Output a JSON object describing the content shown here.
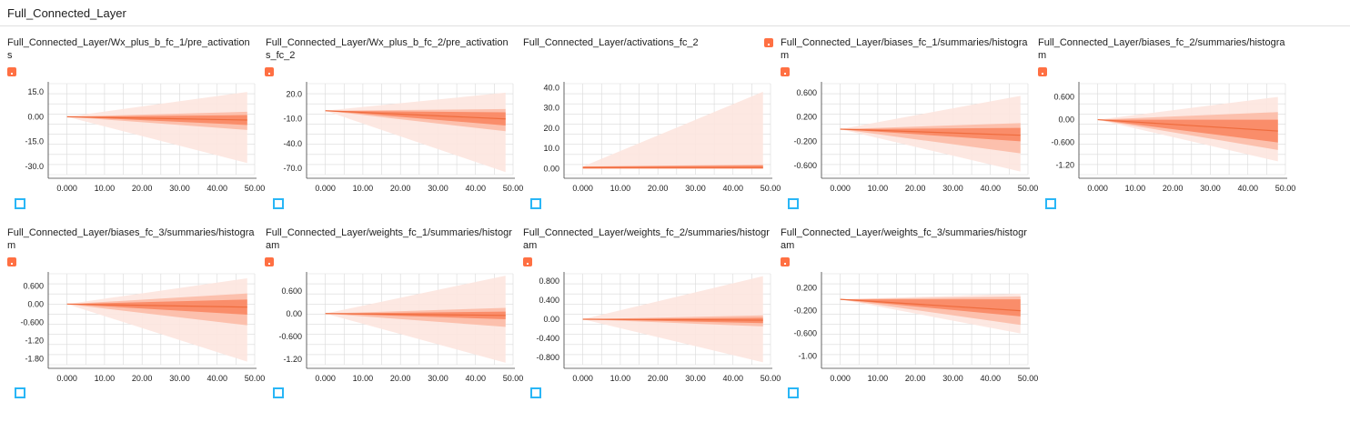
{
  "page": {
    "title": "Full_Connected_Layer"
  },
  "colors": {
    "band_outer": "#fde6df",
    "band_mid": "#fbb9a3",
    "band_inner": "#f9845e",
    "line": "#ef6c3e",
    "tag": "#ff7043",
    "expand": "#29b6f6",
    "grid": "#d9d9d9"
  },
  "icons": {
    "tag": "tag-marker-icon",
    "expand": "expand-icon"
  },
  "charts": [
    {
      "title": "Full_Connected_Layer/Wx_plus_b_fc_1/pre_activations",
      "chart_data": {
        "type": "area",
        "x": [
          0,
          48
        ],
        "xlim": [
          -5,
          50
        ],
        "ylim": [
          -35,
          20
        ],
        "xticks": [
          "0.000",
          "10.00",
          "20.00",
          "30.00",
          "40.00",
          "50.00"
        ],
        "xtick_values": [
          0,
          10,
          20,
          30,
          40,
          50
        ],
        "yticks": [
          "15.0",
          "0.00",
          "-15.0",
          "-30.0"
        ],
        "ytick_values": [
          15,
          0,
          -15,
          -30
        ],
        "bands": [
          {
            "start": [
              0,
              0
            ],
            "end": [
              15,
              -28
            ]
          },
          {
            "start": [
              0,
              0
            ],
            "end": [
              3,
              -8
            ]
          },
          {
            "start": [
              0,
              0
            ],
            "end": [
              1,
              -5
            ]
          }
        ],
        "center": [
          0,
          -2
        ]
      }
    },
    {
      "title": "Full_Connected_Layer/Wx_plus_b_fc_2/pre_activations_fc_2",
      "chart_data": {
        "type": "area",
        "x": [
          0,
          48
        ],
        "xlim": [
          -5,
          50
        ],
        "ylim": [
          -78,
          33
        ],
        "xticks": [
          "0.000",
          "10.00",
          "20.00",
          "30.00",
          "40.00",
          "50.00"
        ],
        "xtick_values": [
          0,
          10,
          20,
          30,
          40,
          50
        ],
        "yticks": [
          "20.0",
          "-10.0",
          "-40.0",
          "-70.0"
        ],
        "ytick_values": [
          20,
          -10,
          -40,
          -70
        ],
        "bands": [
          {
            "start": [
              0,
              0
            ],
            "end": [
              22,
              -75
            ]
          },
          {
            "start": [
              0,
              0
            ],
            "end": [
              2,
              -25
            ]
          },
          {
            "start": [
              0,
              0
            ],
            "end": [
              -2,
              -18
            ]
          }
        ],
        "center": [
          0,
          -10
        ]
      }
    },
    {
      "title": "Full_Connected_Layer/activations_fc_2",
      "chart_data": {
        "type": "area",
        "x": [
          0,
          48
        ],
        "xlim": [
          -5,
          50
        ],
        "ylim": [
          -3,
          42
        ],
        "xticks": [
          "0.000",
          "10.00",
          "20.00",
          "30.00",
          "40.00",
          "50.00"
        ],
        "xtick_values": [
          0,
          10,
          20,
          30,
          40,
          50
        ],
        "yticks": [
          "40.0",
          "30.0",
          "20.0",
          "10.0",
          "0.00"
        ],
        "ytick_values": [
          40,
          30,
          20,
          10,
          0
        ],
        "bands": [
          {
            "start": [
              1,
              0
            ],
            "end": [
              38,
              0
            ]
          },
          {
            "start": [
              1,
              0
            ],
            "end": [
              2,
              0
            ]
          },
          {
            "start": [
              1,
              0
            ],
            "end": [
              1.5,
              0
            ]
          }
        ],
        "center": [
          0.5,
          0.5
        ]
      }
    },
    {
      "title": "Full_Connected_Layer/biases_fc_1/summaries/histogram",
      "chart_data": {
        "type": "area",
        "x": [
          0,
          48
        ],
        "xlim": [
          -5,
          50
        ],
        "ylim": [
          -0.75,
          0.75
        ],
        "xticks": [
          "0.000",
          "10.00",
          "20.00",
          "30.00",
          "40.00",
          "50.00"
        ],
        "xtick_values": [
          0,
          10,
          20,
          30,
          40,
          50
        ],
        "yticks": [
          "0.600",
          "0.200",
          "-0.200",
          "-0.600"
        ],
        "ytick_values": [
          0.6,
          0.2,
          -0.2,
          -0.6
        ],
        "bands": [
          {
            "start": [
              0,
              0
            ],
            "end": [
              0.55,
              -0.7
            ]
          },
          {
            "start": [
              0,
              0
            ],
            "end": [
              0.1,
              -0.4
            ]
          },
          {
            "start": [
              0,
              0
            ],
            "end": [
              0.02,
              -0.2
            ]
          }
        ],
        "center": [
          0,
          -0.1
        ]
      }
    },
    {
      "title": "Full_Connected_Layer/biases_fc_2/summaries/histogram",
      "chart_data": {
        "type": "area",
        "x": [
          0,
          48
        ],
        "xlim": [
          -5,
          50
        ],
        "ylim": [
          -1.45,
          0.95
        ],
        "xticks": [
          "0.000",
          "10.00",
          "20.00",
          "30.00",
          "40.00",
          "50.00"
        ],
        "xtick_values": [
          0,
          10,
          20,
          30,
          40,
          50
        ],
        "yticks": [
          "0.600",
          "0.00",
          "-0.600",
          "-1.20"
        ],
        "ytick_values": [
          0.6,
          0,
          -0.6,
          -1.2
        ],
        "bands": [
          {
            "start": [
              0,
              0
            ],
            "end": [
              0.6,
              -1.1
            ]
          },
          {
            "start": [
              0,
              0
            ],
            "end": [
              0.2,
              -0.8
            ]
          },
          {
            "start": [
              0,
              0
            ],
            "end": [
              0,
              -0.6
            ]
          }
        ],
        "center": [
          0,
          -0.3
        ]
      }
    },
    {
      "title": "Full_Connected_Layer/biases_fc_3/summaries/histogram",
      "chart_data": {
        "type": "area",
        "x": [
          0,
          48
        ],
        "xlim": [
          -5,
          50
        ],
        "ylim": [
          -2.0,
          1.0
        ],
        "xticks": [
          "0.000",
          "10.00",
          "20.00",
          "30.00",
          "40.00",
          "50.00"
        ],
        "xtick_values": [
          0,
          10,
          20,
          30,
          40,
          50
        ],
        "yticks": [
          "0.600",
          "0.00",
          "-0.600",
          "-1.20",
          "-1.80"
        ],
        "ytick_values": [
          0.6,
          0,
          -0.6,
          -1.2,
          -1.8
        ],
        "bands": [
          {
            "start": [
              0,
              0
            ],
            "end": [
              0.85,
              -1.9
            ]
          },
          {
            "start": [
              0,
              0
            ],
            "end": [
              0.35,
              -0.7
            ]
          },
          {
            "start": [
              0,
              0
            ],
            "end": [
              0.15,
              -0.35
            ]
          }
        ],
        "center": [
          0,
          -0.1
        ]
      }
    },
    {
      "title": "Full_Connected_Layer/weights_fc_1/summaries/histogram",
      "chart_data": {
        "type": "area",
        "x": [
          0,
          48
        ],
        "xlim": [
          -5,
          50
        ],
        "ylim": [
          -1.35,
          1.05
        ],
        "xticks": [
          "0.000",
          "10.00",
          "20.00",
          "30.00",
          "40.00",
          "50.00"
        ],
        "xtick_values": [
          0,
          10,
          20,
          30,
          40,
          50
        ],
        "yticks": [
          "0.600",
          "0.00",
          "-0.600",
          "-1.20"
        ],
        "ytick_values": [
          0.6,
          0,
          -0.6,
          -1.2
        ],
        "bands": [
          {
            "start": [
              0,
              0
            ],
            "end": [
              1.0,
              -1.3
            ]
          },
          {
            "start": [
              0,
              0
            ],
            "end": [
              0.15,
              -0.35
            ]
          },
          {
            "start": [
              0,
              0
            ],
            "end": [
              0.05,
              -0.15
            ]
          }
        ],
        "center": [
          0,
          -0.05
        ]
      }
    },
    {
      "title": "Full_Connected_Layer/weights_fc_2/summaries/histogram",
      "chart_data": {
        "type": "area",
        "x": [
          0,
          48
        ],
        "xlim": [
          -5,
          50
        ],
        "ylim": [
          -0.95,
          0.95
        ],
        "xticks": [
          "0.000",
          "10.00",
          "20.00",
          "30.00",
          "40.00",
          "50.00"
        ],
        "xtick_values": [
          0,
          10,
          20,
          30,
          40,
          50
        ],
        "yticks": [
          "0.800",
          "0.400",
          "0.00",
          "-0.400",
          "-0.800"
        ],
        "ytick_values": [
          0.8,
          0.4,
          0,
          -0.4,
          -0.8
        ],
        "bands": [
          {
            "start": [
              0,
              0
            ],
            "end": [
              0.9,
              -0.9
            ]
          },
          {
            "start": [
              0,
              0
            ],
            "end": [
              0.08,
              -0.15
            ]
          },
          {
            "start": [
              0,
              0
            ],
            "end": [
              0.03,
              -0.08
            ]
          }
        ],
        "center": [
          0,
          -0.02
        ]
      }
    },
    {
      "title": "Full_Connected_Layer/weights_fc_3/summaries/histogram",
      "chart_data": {
        "type": "area",
        "x": [
          0,
          48
        ],
        "xlim": [
          -5,
          50
        ],
        "ylim": [
          -1.15,
          0.45
        ],
        "xticks": [
          "0.000",
          "10.00",
          "20.00",
          "30.00",
          "40.00",
          "50.00"
        ],
        "xtick_values": [
          0,
          10,
          20,
          30,
          40,
          50
        ],
        "yticks": [
          "0.200",
          "-0.200",
          "-0.600",
          "-1.00"
        ],
        "ytick_values": [
          0.2,
          -0.2,
          -0.6,
          -1.0
        ],
        "bands": [
          {
            "start": [
              0,
              0
            ],
            "end": [
              0.1,
              -0.6
            ]
          },
          {
            "start": [
              0,
              0
            ],
            "end": [
              0.05,
              -0.45
            ]
          },
          {
            "start": [
              0,
              0
            ],
            "end": [
              0.0,
              -0.3
            ]
          }
        ],
        "center": [
          0,
          -0.2
        ]
      }
    }
  ]
}
